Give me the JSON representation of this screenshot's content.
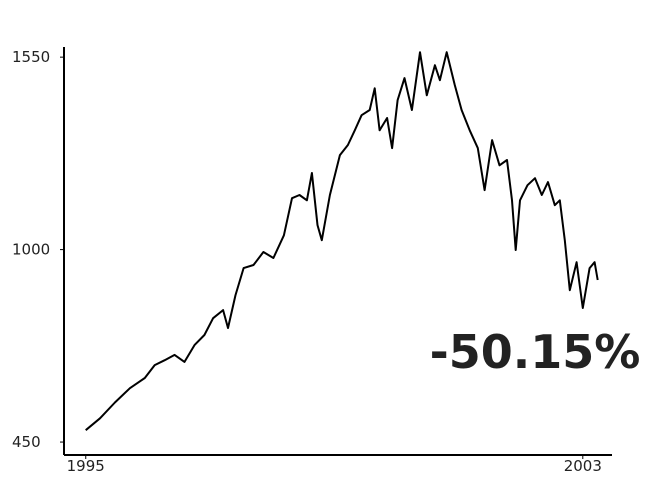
{
  "chart_data": {
    "type": "line",
    "annotation": "-50.15%",
    "annotation_color": "#f5475a",
    "x": [
      1995.0,
      1995.23,
      1995.47,
      1995.71,
      1995.95,
      1996.11,
      1996.27,
      1996.43,
      1996.59,
      1996.75,
      1996.91,
      1997.05,
      1997.21,
      1997.29,
      1997.41,
      1997.54,
      1997.7,
      1997.86,
      1998.02,
      1998.19,
      1998.32,
      1998.44,
      1998.56,
      1998.64,
      1998.73,
      1998.8,
      1998.93,
      1999.09,
      1999.22,
      1999.33,
      1999.44,
      1999.57,
      1999.65,
      1999.73,
      1999.85,
      1999.93,
      2000.02,
      2000.13,
      2000.25,
      2000.38,
      2000.49,
      2000.62,
      2000.7,
      2000.81,
      2000.94,
      2001.05,
      2001.18,
      2001.31,
      2001.42,
      2001.54,
      2001.66,
      2001.78,
      2001.86,
      2001.92,
      2001.99,
      2002.11,
      2002.23,
      2002.34,
      2002.44,
      2002.55,
      2002.63,
      2002.71,
      2002.79,
      2002.9,
      2003.0,
      2003.11,
      2003.19,
      2003.24
    ],
    "series": [
      {
        "color": "#000000",
        "values": [
          484,
          518,
          563,
          604,
          633,
          670,
          684,
          699,
          679,
          727,
          756,
          804,
          827,
          776,
          870,
          947,
          956,
          993,
          976,
          1041,
          1147,
          1156,
          1141,
          1219,
          1070,
          1027,
          1156,
          1270,
          1299,
          1341,
          1384,
          1399,
          1461,
          1341,
          1376,
          1290,
          1427,
          1490,
          1399,
          1564,
          1441,
          1527,
          1484,
          1564,
          1470,
          1399,
          1341,
          1290,
          1170,
          1313,
          1241,
          1256,
          1141,
          999,
          1141,
          1184,
          1204,
          1156,
          1193,
          1127,
          1141,
          1027,
          884,
          964,
          833,
          947,
          964,
          913
        ]
      }
    ],
    "xlim": [
      1994.65,
      2003.47
    ],
    "ylim": [
      413,
      1579
    ],
    "xticks": [
      1995,
      2003
    ],
    "yticks": [
      450,
      1000,
      1550
    ]
  }
}
